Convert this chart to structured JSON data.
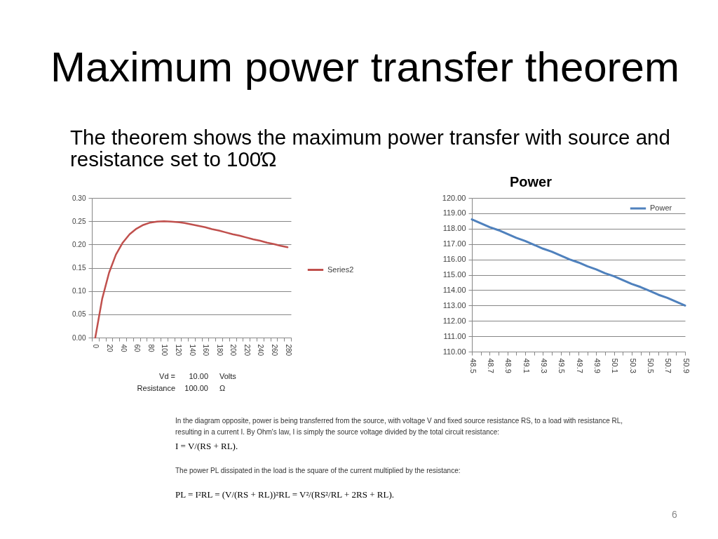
{
  "chart_data": [
    {
      "type": "other",
      "title": "Maximum power transfer theorem",
      "subtitle": "The theorem shows the maximum power transfer with source and resistance set to 100Ώ"
    },
    {
      "type": "line",
      "categories": [
        "0",
        null,
        "20",
        null,
        "40",
        null,
        "60",
        null,
        "80",
        null,
        "100",
        null,
        "120",
        null,
        "140",
        null,
        "160",
        null,
        "180",
        null,
        "200",
        null,
        "220",
        null,
        "240",
        null,
        "260",
        null,
        "280"
      ],
      "series": [
        {
          "name": "Series2",
          "color": "#c0504d",
          "values": [
            0,
            0.083,
            0.139,
            0.178,
            0.204,
            0.222,
            0.234,
            0.242,
            0.247,
            0.249,
            0.25,
            0.249,
            0.248,
            0.246,
            0.243,
            0.24,
            0.237,
            0.233,
            0.23,
            0.226,
            0.222,
            0.219,
            0.215,
            0.211,
            0.208,
            0.204,
            0.201,
            0.197,
            0.194
          ]
        }
      ],
      "ylim": [
        0,
        0.3
      ],
      "yticks": [
        {
          "value": 0,
          "label": "0.00"
        },
        0.05,
        {
          "value": 0.1,
          "label": "0.10"
        },
        0.15,
        {
          "value": 0.2,
          "label": "0.20"
        },
        0.25,
        {
          "value": 0.3,
          "label": "0.30"
        }
      ],
      "grid": "y",
      "legend": "right",
      "annotations": [
        "Vd =",
        "10.00",
        "Volts",
        "Resistance",
        "100.00",
        "Ω"
      ]
    },
    {
      "type": "line",
      "title": "Power",
      "categories": [
        "48.5",
        null,
        "48.7",
        null,
        "48.9",
        null,
        "49.1",
        null,
        "49.3",
        null,
        "49.5",
        null,
        "49.7",
        null,
        "49.9",
        null,
        "50.1",
        null,
        "50.3",
        null,
        "50.5",
        null,
        "50.7",
        null,
        "50.9"
      ],
      "series": [
        {
          "name": "Power",
          "color": "#4f81bd",
          "values": [
            118.6,
            118.35,
            118.1,
            117.9,
            117.65,
            117.4,
            117.2,
            116.95,
            116.7,
            116.5,
            116.25,
            116.0,
            115.8,
            115.55,
            115.35,
            115.1,
            114.9,
            114.65,
            114.4,
            114.2,
            113.95,
            113.7,
            113.5,
            113.25,
            113.0
          ]
        }
      ],
      "ylim": [
        110,
        120
      ],
      "yticks": [
        {
          "value": 110,
          "label": "110.00"
        },
        {
          "value": 111,
          "label": "111.00"
        },
        {
          "value": 112,
          "label": "112.00"
        },
        {
          "value": 113,
          "label": "113.00"
        },
        {
          "value": 114,
          "label": "114.00"
        },
        {
          "value": 115,
          "label": "115.00"
        },
        {
          "value": 116,
          "label": "116.00"
        },
        {
          "value": 117,
          "label": "117.00"
        },
        {
          "value": 118,
          "label": "118.00"
        },
        {
          "value": 119,
          "label": "119.00"
        },
        {
          "value": 120,
          "label": "120.00"
        }
      ],
      "grid": "y",
      "legend": "top right"
    },
    {
      "type": "other",
      "annotations": [
        "In the diagram opposite, power is being transferred from the source, with voltage V and fixed source resistance RS, to a load with resistance RL, resulting in a current I. By Ohm's law, I is simply the source voltage divided by the total circuit resistance:",
        "I = V/(RS + RL).",
        "The power PL dissipated in the load is the square of the current multiplied by the resistance:",
        "PL = I²RL = (V/(RS + RL))²RL = V²/(RS²/RL + 2RS + RL).",
        "6"
      ]
    }
  ]
}
